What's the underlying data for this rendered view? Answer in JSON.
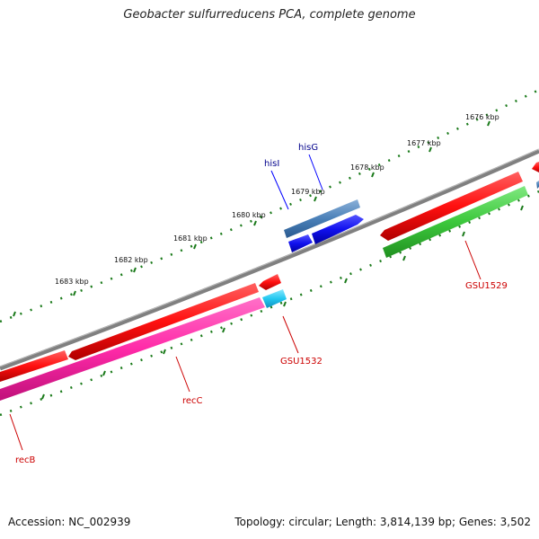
{
  "title": "Geobacter sulfurreducens PCA, complete genome",
  "footer": {
    "accession": "Accession: NC_002939",
    "summary": "Topology: circular; Length: 3,814,139 bp; Genes: 3,502"
  },
  "ruler_ticks": [
    "1676 kbp",
    "1677 kbp",
    "1678 kbp",
    "1679 kbp",
    "1680 kbp",
    "1681 kbp",
    "1682 kbp",
    "1683 kbp"
  ],
  "genes": [
    {
      "name": "hisI",
      "color": "#00008b"
    },
    {
      "name": "hisG",
      "color": "#00008b"
    },
    {
      "name": "GSU1529",
      "color": "#cc0000"
    },
    {
      "name": "GSU1532",
      "color": "#cc0000"
    },
    {
      "name": "recC",
      "color": "#cc0000"
    },
    {
      "name": "recB",
      "color": "#cc0000"
    }
  ],
  "colors": {
    "backbone": "#808080",
    "tick": "#1a7a1a",
    "gene_red": "#ff1a1a",
    "gene_green": "#3cc83c",
    "gene_pink": "#ff33aa",
    "gene_cyan": "#22c8f0",
    "gene_blue": "#1111ee",
    "gene_steel": "#4a80b8"
  }
}
